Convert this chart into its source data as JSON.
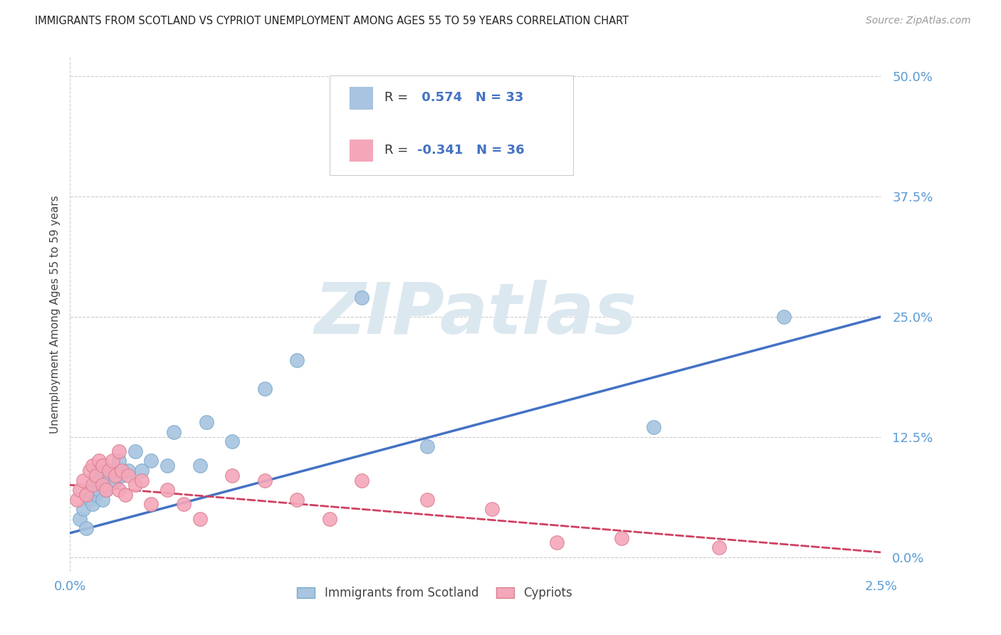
{
  "title": "IMMIGRANTS FROM SCOTLAND VS CYPRIOT UNEMPLOYMENT AMONG AGES 55 TO 59 YEARS CORRELATION CHART",
  "source": "Source: ZipAtlas.com",
  "ylabel": "Unemployment Among Ages 55 to 59 years",
  "ytick_values": [
    0.0,
    0.125,
    0.25,
    0.375,
    0.5
  ],
  "ytick_labels": [
    "0.0%",
    "12.5%",
    "25.0%",
    "37.5%",
    "50.0%"
  ],
  "xtick_values": [
    0.0,
    0.025
  ],
  "xtick_labels": [
    "0.0%",
    "2.5%"
  ],
  "xmin": 0.0,
  "xmax": 0.025,
  "ymin": -0.015,
  "ymax": 0.52,
  "legend_r_blue": "0.574",
  "legend_n_blue": "33",
  "legend_r_pink": "-0.341",
  "legend_n_pink": "36",
  "legend_label_blue": "Immigrants from Scotland",
  "legend_label_pink": "Cypriots",
  "blue_dot_color": "#a8c4e0",
  "blue_dot_edge": "#7aaacb",
  "pink_dot_color": "#f4a7b9",
  "pink_dot_edge": "#d98090",
  "blue_line_color": "#4472c4",
  "pink_line_color": "#d04060",
  "title_color": "#222222",
  "axis_tick_color": "#5b9bd5",
  "ylabel_color": "#444444",
  "watermark_color": "#dce8f0",
  "grid_color": "#cccccc",
  "blue_scatter_x": [
    0.0003,
    0.0004,
    0.0005,
    0.0006,
    0.0007,
    0.0007,
    0.0008,
    0.0008,
    0.0009,
    0.001,
    0.001,
    0.0011,
    0.0012,
    0.0012,
    0.0013,
    0.0014,
    0.0015,
    0.0016,
    0.0018,
    0.002,
    0.0022,
    0.0025,
    0.003,
    0.0032,
    0.004,
    0.0042,
    0.005,
    0.006,
    0.007,
    0.009,
    0.011,
    0.018,
    0.022
  ],
  "blue_scatter_y": [
    0.04,
    0.05,
    0.03,
    0.06,
    0.055,
    0.07,
    0.065,
    0.08,
    0.07,
    0.06,
    0.09,
    0.07,
    0.075,
    0.085,
    0.09,
    0.08,
    0.1,
    0.085,
    0.09,
    0.11,
    0.09,
    0.1,
    0.095,
    0.13,
    0.095,
    0.14,
    0.12,
    0.175,
    0.205,
    0.27,
    0.115,
    0.135,
    0.25
  ],
  "pink_scatter_x": [
    0.0002,
    0.0003,
    0.0004,
    0.0005,
    0.0006,
    0.0007,
    0.0007,
    0.0008,
    0.0009,
    0.001,
    0.001,
    0.0011,
    0.0012,
    0.0013,
    0.0014,
    0.0015,
    0.0015,
    0.0016,
    0.0017,
    0.0018,
    0.002,
    0.0022,
    0.0025,
    0.003,
    0.0035,
    0.004,
    0.005,
    0.006,
    0.007,
    0.008,
    0.009,
    0.011,
    0.013,
    0.015,
    0.017,
    0.02
  ],
  "pink_scatter_y": [
    0.06,
    0.07,
    0.08,
    0.065,
    0.09,
    0.075,
    0.095,
    0.085,
    0.1,
    0.075,
    0.095,
    0.07,
    0.09,
    0.1,
    0.085,
    0.11,
    0.07,
    0.09,
    0.065,
    0.085,
    0.075,
    0.08,
    0.055,
    0.07,
    0.055,
    0.04,
    0.085,
    0.08,
    0.06,
    0.04,
    0.08,
    0.06,
    0.05,
    0.015,
    0.02,
    0.01
  ],
  "blue_trendline_x": [
    0.0,
    0.025
  ],
  "blue_trendline_y": [
    0.025,
    0.25
  ],
  "pink_trendline_x": [
    0.0,
    0.025
  ],
  "pink_trendline_y": [
    0.075,
    0.005
  ],
  "background_color": "#ffffff"
}
